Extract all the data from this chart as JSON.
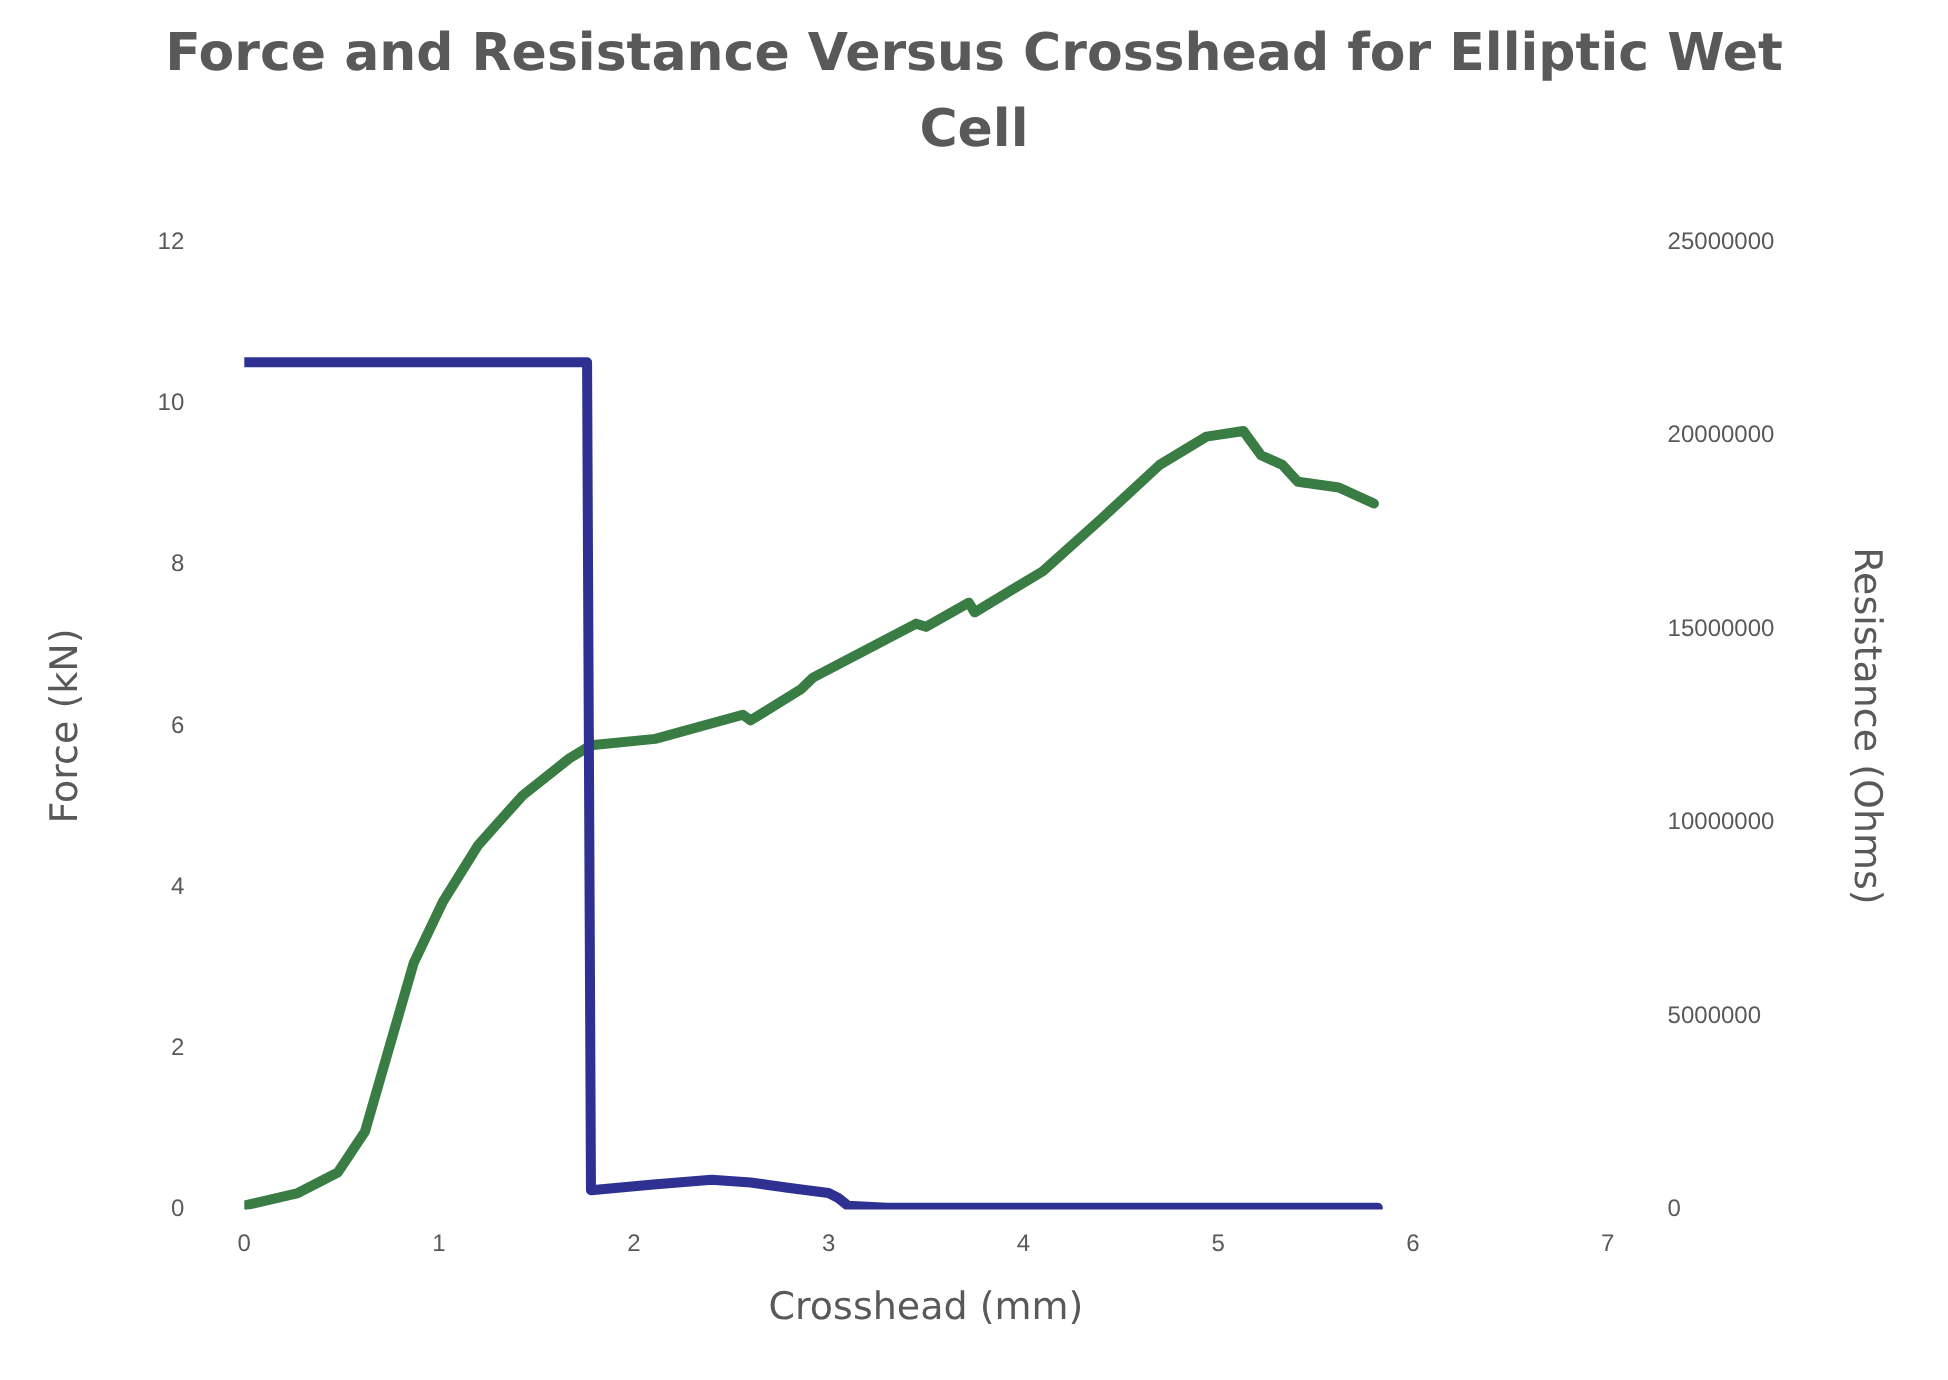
{
  "chart_data": {
    "type": "line",
    "title": "Force and Resistance Versus Crosshead for Elliptic Wet Cell",
    "xlabel": "Crosshead (mm)",
    "ylabel": "Force (kN)",
    "y2label": "Resistance (Ohms)",
    "xlim": [
      0,
      7
    ],
    "xticks": [
      0,
      1,
      2,
      3,
      4,
      5,
      6,
      7
    ],
    "ylim": [
      0,
      12
    ],
    "yticks": [
      0,
      2,
      4,
      6,
      8,
      10,
      12
    ],
    "y2lim": [
      0,
      25000000
    ],
    "y2ticks": [
      0,
      5000000,
      10000000,
      15000000,
      20000000,
      25000000
    ],
    "grid": false,
    "legend": false,
    "marker": "none",
    "line_style": "solid",
    "series": [
      {
        "color": "#2e3192",
        "axis": "y2",
        "x": [
          0,
          1.76,
          1.78,
          2.1,
          2.4,
          2.6,
          2.8,
          3.0,
          3.05,
          3.1,
          3.3,
          4,
          5,
          5.82
        ],
        "values": [
          21900000,
          21900000,
          500000,
          650000,
          770000,
          700000,
          560000,
          430000,
          300000,
          100000,
          50000,
          50000,
          50000,
          50000
        ]
      },
      {
        "color": "#3a7d44",
        "x": [
          0,
          0.27,
          0.48,
          0.62,
          0.75,
          0.87,
          1.02,
          1.2,
          1.43,
          1.67,
          1.78,
          2.11,
          2.56,
          2.6,
          2.86,
          2.92,
          3.45,
          3.5,
          3.72,
          3.75,
          4.1,
          4.4,
          4.7,
          4.94,
          5.13,
          5.22,
          5.33,
          5.41,
          5.62,
          5.8
        ],
        "values": [
          0.05,
          0.2,
          0.46,
          0.97,
          2.06,
          3.06,
          3.82,
          4.52,
          5.14,
          5.6,
          5.76,
          5.84,
          6.14,
          6.07,
          6.46,
          6.6,
          7.27,
          7.23,
          7.53,
          7.41,
          7.92,
          8.57,
          9.24,
          9.59,
          9.66,
          9.36,
          9.24,
          9.03,
          8.96,
          8.76
        ]
      }
    ]
  }
}
